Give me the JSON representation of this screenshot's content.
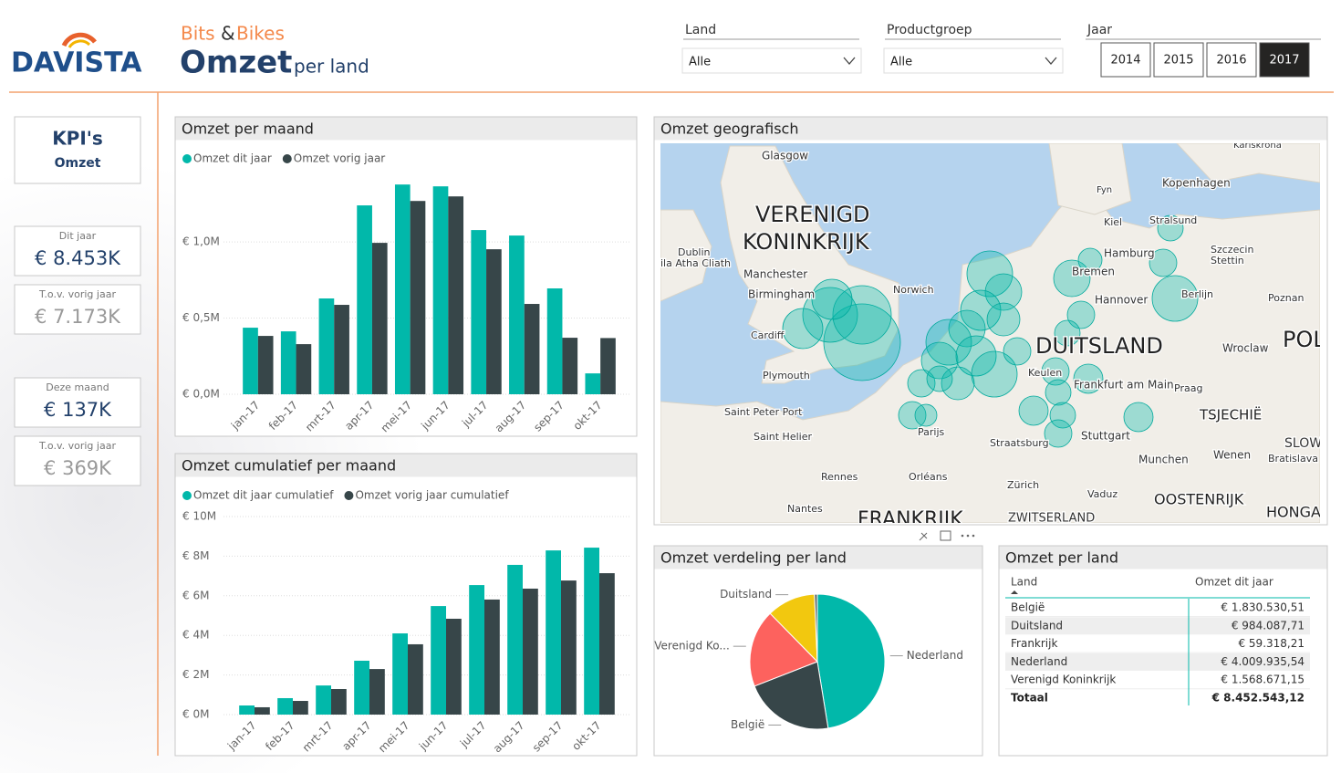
{
  "header": {
    "brand": "DAVISTA",
    "subtitle_a": "Bits",
    "subtitle_amp": "&",
    "subtitle_b": "Bikes",
    "title": "Omzet",
    "title_suffix": "per land"
  },
  "slicers": {
    "land": {
      "label": "Land",
      "value": "Alle"
    },
    "productgroep": {
      "label": "Productgroep",
      "value": "Alle"
    },
    "jaar": {
      "label": "Jaar",
      "options": [
        2014,
        2015,
        2016,
        2017
      ],
      "selected": 2017
    }
  },
  "kpis": {
    "title": "KPI's",
    "subtitle": "Omzet",
    "cards": [
      {
        "label": "Dit jaar",
        "value": "€ 8.453K"
      },
      {
        "label": "T.o.v. vorig jaar",
        "value": "€ 7.173K"
      },
      {
        "label": "Deze maand",
        "value": "€ 137K"
      },
      {
        "label": "T.o.v. vorig jaar",
        "value": "€ 369K"
      }
    ]
  },
  "chart_data": [
    {
      "type": "bar",
      "title": "Omzet per maand",
      "categories": [
        "jan-17",
        "feb-17",
        "mrt-17",
        "apr-17",
        "mei-17",
        "jun-17",
        "jul-17",
        "aug-17",
        "sep-17",
        "okt-17"
      ],
      "series": [
        {
          "name": "Omzet dit jaar",
          "color": "#01b8aa",
          "values": [
            0.437,
            0.413,
            0.629,
            1.24,
            1.377,
            1.365,
            1.078,
            1.042,
            0.695,
            0.137
          ]
        },
        {
          "name": "Omzet vorig jaar",
          "color": "#374649",
          "values": [
            0.383,
            0.329,
            0.587,
            0.994,
            1.269,
            1.299,
            0.952,
            0.593,
            0.371,
            0.369
          ]
        }
      ],
      "ylim": [
        0,
        1.45
      ],
      "yticks": [
        {
          "value": 0,
          "label": "€ 0,0M"
        },
        {
          "value": 0.5,
          "label": "€ 0,5M"
        },
        {
          "value": 1,
          "label": "€ 1,0M"
        }
      ],
      "grid": true
    },
    {
      "type": "bar",
      "title": "Omzet cumulatief per maand",
      "categories": [
        "jan-17",
        "feb-17",
        "mrt-17",
        "apr-17",
        "mei-17",
        "jun-17",
        "jul-17",
        "aug-17",
        "sep-17",
        "okt-17"
      ],
      "series": [
        {
          "name": "Omzet dit jaar cumulatief",
          "color": "#01b8aa",
          "values": [
            0.46,
            0.83,
            1.47,
            2.72,
            4.1,
            5.48,
            6.54,
            7.56,
            8.29,
            8.43
          ]
        },
        {
          "name": "Omzet vorig jaar cumulatief",
          "color": "#374649",
          "values": [
            0.37,
            0.69,
            1.29,
            2.3,
            3.55,
            4.84,
            5.81,
            6.36,
            6.77,
            7.14
          ]
        }
      ],
      "ylim": [
        0,
        10
      ],
      "yticks": [
        {
          "value": 0,
          "label": "€ 0M"
        },
        {
          "value": 2,
          "label": "€ 2M"
        },
        {
          "value": 4,
          "label": "€ 4M"
        },
        {
          "value": 6,
          "label": "€ 6M"
        },
        {
          "value": 8,
          "label": "€ 8M"
        },
        {
          "value": 10,
          "label": "€ 10M"
        }
      ],
      "grid": true
    },
    {
      "type": "pie",
      "title": "Omzet verdeling per land",
      "categories": [
        "Nederland",
        "België",
        "Verenigd Ko...",
        "Duitsland",
        null
      ],
      "values": [
        4009935.54,
        1830530.51,
        1568671.15,
        984087.71,
        59318.21
      ],
      "colors": [
        "#01b8aa",
        "#374649",
        "#fd625e",
        "#f2c80f",
        "#5f6b6d"
      ]
    }
  ],
  "map": {
    "title": "Omzet geografisch",
    "labels": [
      "Glasgow",
      "VERENIGD",
      "KONINKRIJK",
      "Dublin",
      "ila Atha Cliath",
      "Manchester",
      "Birmingham",
      "Norwich",
      "Cardiff",
      "Plymouth",
      "Saint Peter Port",
      "Saint Helier",
      "Rennes",
      "Orléans",
      "Nantes",
      "FRANKRIJK",
      "Parijs",
      "Straatsburg",
      "Zürich",
      "Vaduz",
      "ZWITSERLAND",
      "Stuttgart",
      "Munchen",
      "OOSTENRIJK",
      "HONGA",
      "Wenen",
      "Bratislava",
      "SLOW",
      "TSJECHIË",
      "Praag",
      "Wroclaw",
      "POL",
      "Poznan",
      "Szczecin",
      "Stettin",
      "Berlijn",
      "Hannover",
      "Bremen",
      "Hamburg",
      "Kiel",
      "Stralsund",
      "Kopenhagen",
      "Karlskrona",
      "Fyn",
      "DUITSLAND",
      "Keulen",
      "Frankfurt am Main"
    ]
  },
  "table": {
    "title": "Omzet per land",
    "columns": [
      "Land",
      "Omzet dit jaar"
    ],
    "rows": [
      [
        "België",
        "€ 1.830.530,51"
      ],
      [
        "Duitsland",
        "€ 984.087,71"
      ],
      [
        "Frankrijk",
        "€ 59.318,21"
      ],
      [
        "Nederland",
        "€ 4.009.935,54"
      ],
      [
        "Verenigd Koninkrijk",
        "€ 1.568.671,15"
      ]
    ],
    "total": [
      "Totaal",
      "€ 8.452.543,12"
    ]
  }
}
